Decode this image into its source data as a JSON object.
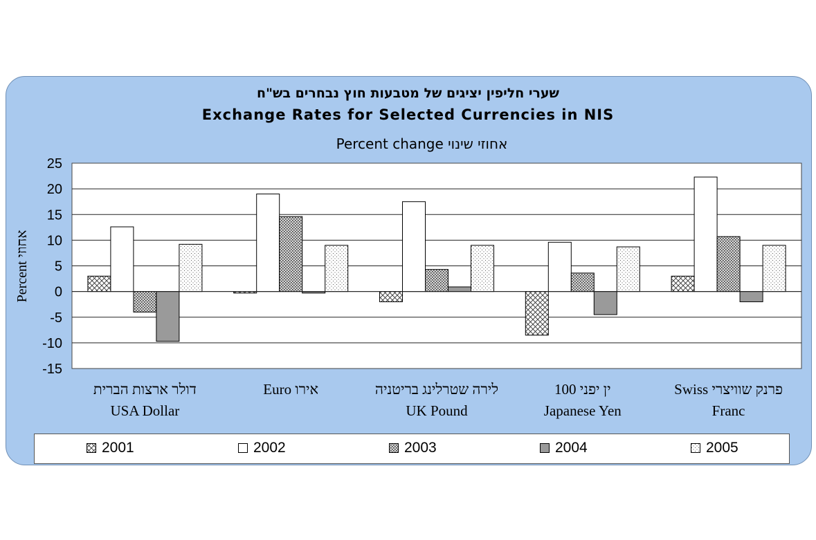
{
  "chart_data": {
    "type": "bar",
    "title_he": "שערי חליפין יציגים  של מטבעות חוץ נבחרים בש\"ח",
    "title": "Exchange Rates for Selected Currencies in  NIS",
    "subtitle": "Percent change אחוזי שינוי",
    "ylabel": "Percent אחוזי",
    "ylim": [
      -15,
      25
    ],
    "yticks": [
      "25",
      "20",
      "15",
      "10",
      "5",
      "0",
      "-5",
      "-10",
      "-15"
    ],
    "categories": [
      {
        "line1": "דולר ארצות הברית",
        "line2": "USA Dollar"
      },
      {
        "line1": "Euro  אירו",
        "line2": ""
      },
      {
        "line1": "לירה שטרלינג בריטניה",
        "line2": "UK Pound"
      },
      {
        "line1": "ין יפני 100",
        "line2": "Japanese Yen"
      },
      {
        "line1": "Swiss      פרנק שוויצרי",
        "line2": "Franc"
      }
    ],
    "series": [
      {
        "name": "2001",
        "values": [
          3.0,
          -0.3,
          -2.0,
          -8.5,
          3.0
        ]
      },
      {
        "name": "2002",
        "values": [
          12.6,
          19.0,
          17.5,
          9.6,
          22.3
        ]
      },
      {
        "name": "2003",
        "values": [
          -4.0,
          14.6,
          4.3,
          3.6,
          10.7
        ]
      },
      {
        "name": "2004",
        "values": [
          -9.7,
          -0.3,
          0.9,
          -4.5,
          -2.0
        ]
      },
      {
        "name": "2005",
        "values": [
          9.2,
          9.0,
          9.0,
          8.7,
          9.0
        ]
      }
    ],
    "grid": true,
    "legend_position": "bottom"
  }
}
